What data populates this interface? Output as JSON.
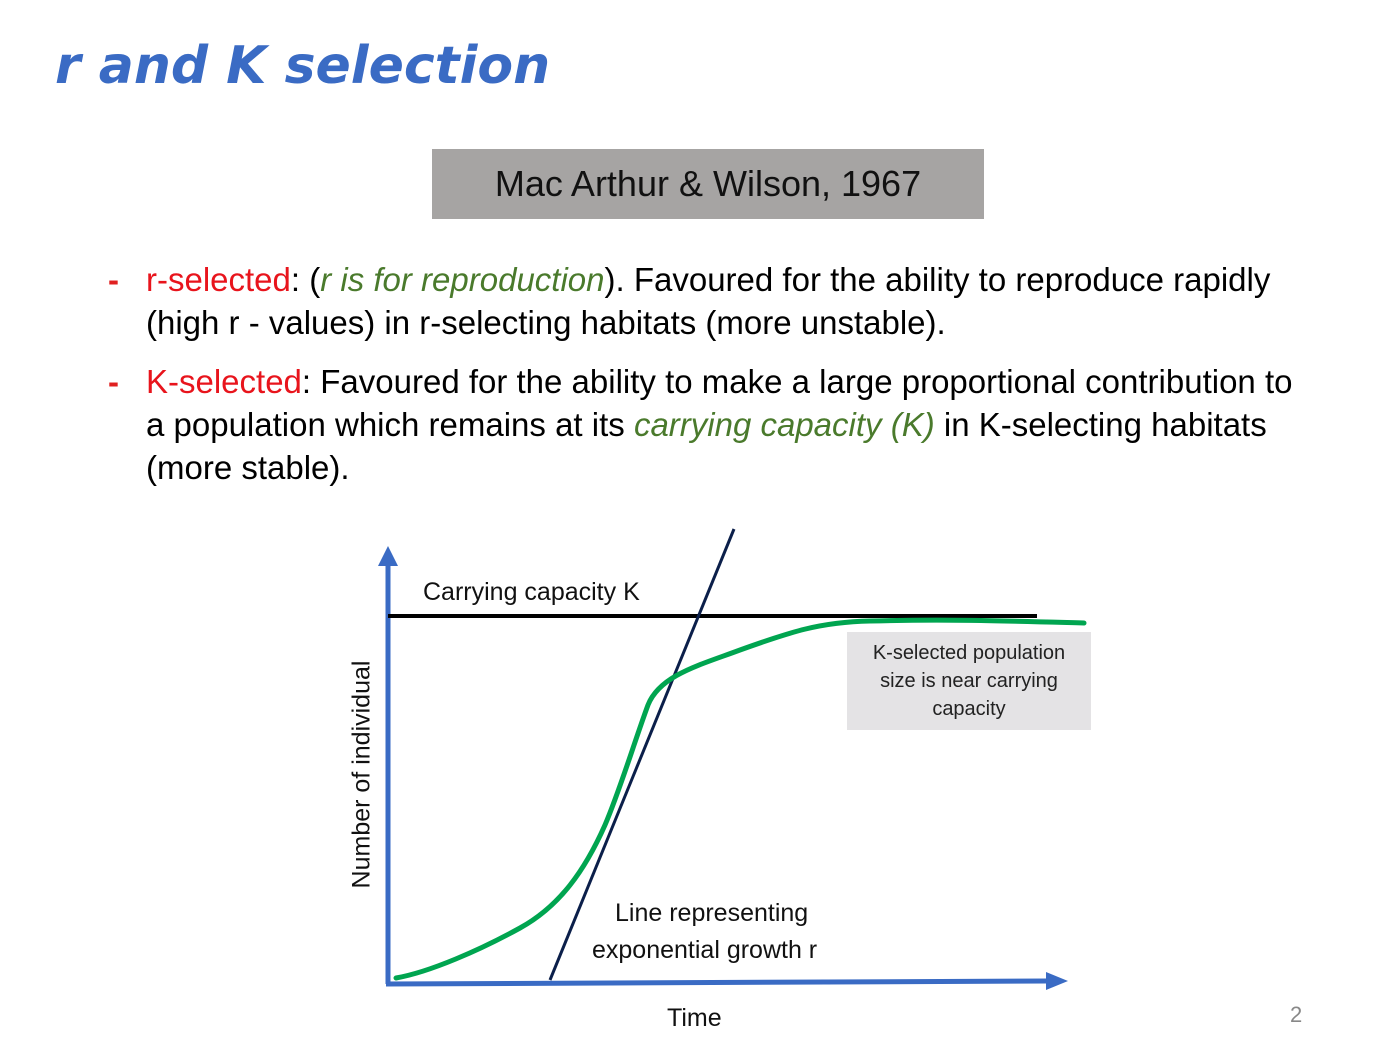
{
  "title": "r and K selection",
  "citation": "Mac Arthur & Wilson, 1967",
  "bullets": [
    {
      "term": "r-selected",
      "colon": ": (",
      "note": "r is for reproduction",
      "rest": "). Favoured for the ability to reproduce rapidly (high r - values) in r-selecting habitats (more unstable)."
    },
    {
      "term": "K-selected",
      "text_before": ": Favoured for the ability to make a large proportional contribution to a population which remains at its ",
      "highlight": "carrying capacity (K)",
      "text_after": " in K-selecting habitats (more stable)."
    }
  ],
  "diagram": {
    "carrying_capacity_label": "Carrying capacity K",
    "callout": "K-selected population size is near carrying capacity",
    "exponential_label_line1": "Line representing",
    "exponential_label_line2": "exponential growth r",
    "y_axis_label": "Number of individual",
    "x_axis_label": "Time",
    "colors": {
      "axis": "#3a6bc4",
      "curve": "#00a550",
      "k_line": "#000000",
      "r_line": "#0b1f4a"
    }
  },
  "page_number": "2"
}
